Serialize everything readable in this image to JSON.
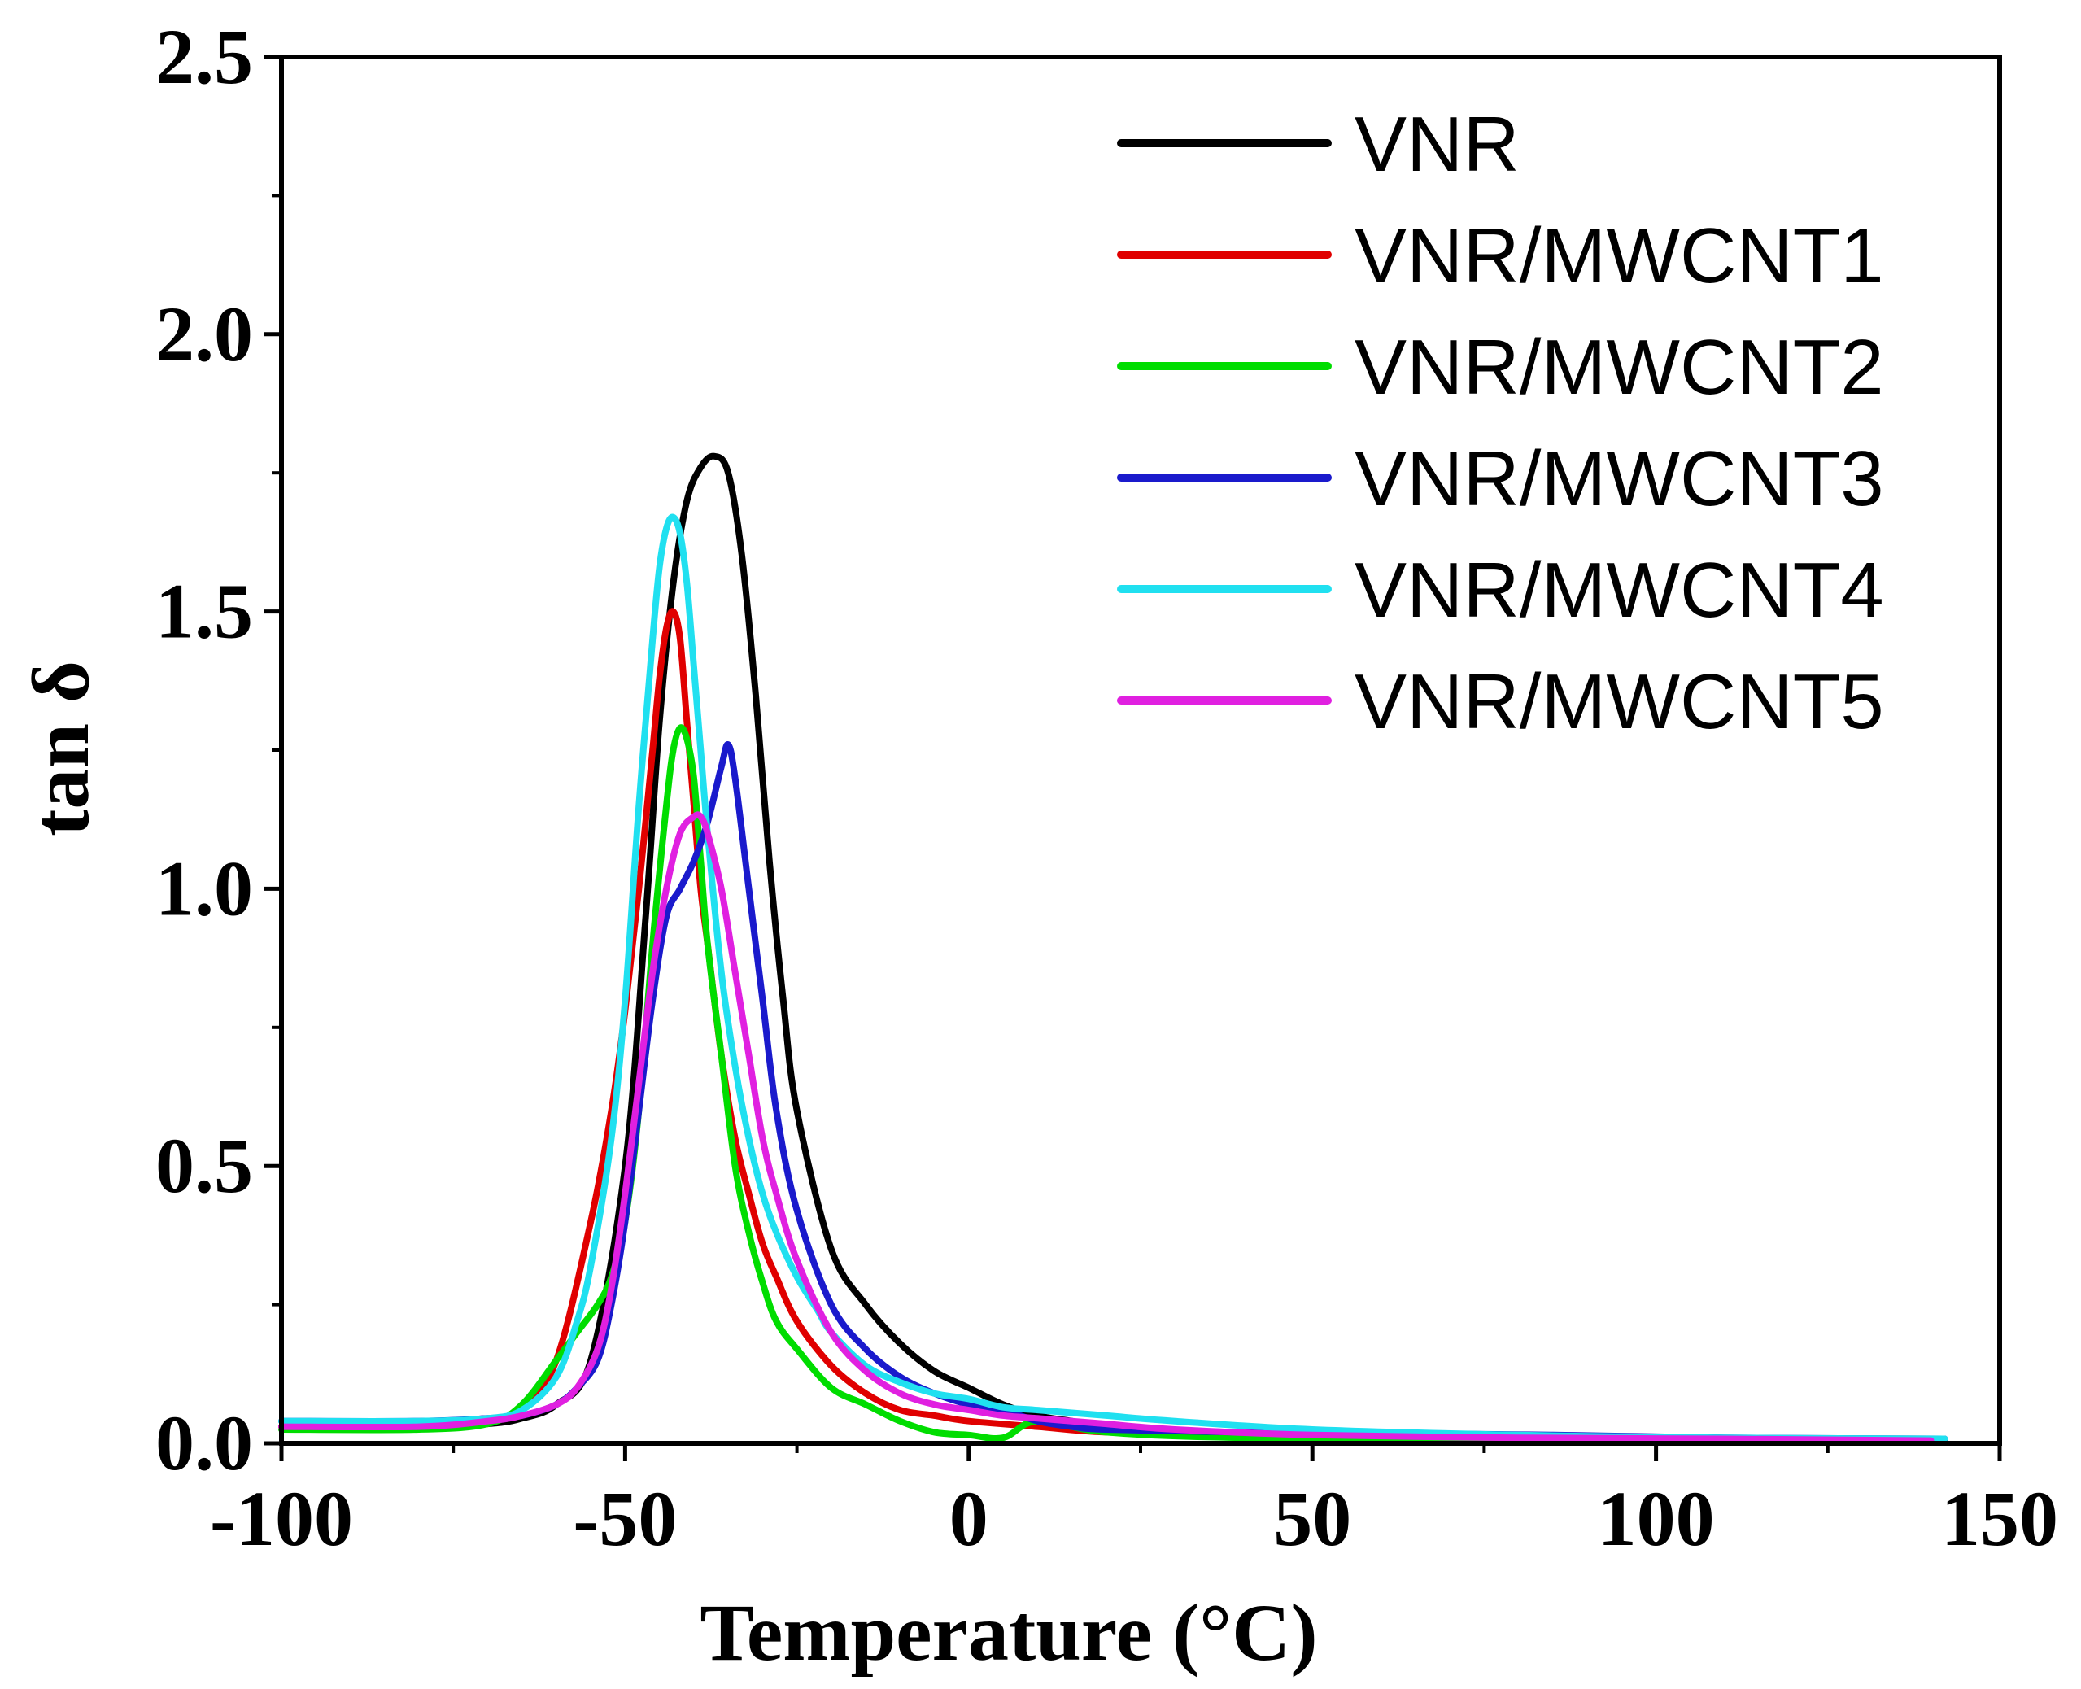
{
  "chart_data": {
    "type": "line",
    "title": "",
    "xlabel": "Temperature (°C)",
    "ylabel": "tan δ",
    "xlim": [
      -100,
      150
    ],
    "ylim": [
      0.0,
      2.5
    ],
    "x_ticks": [
      -100,
      -50,
      0,
      50,
      100,
      150
    ],
    "x_tick_labels": [
      "-100",
      "-50",
      "0",
      "50",
      "100",
      "150"
    ],
    "y_ticks": [
      0.0,
      0.5,
      1.0,
      1.5,
      2.0,
      2.5
    ],
    "y_tick_labels": [
      "0.0",
      "0.5",
      "1.0",
      "1.5",
      "2.0",
      "2.5"
    ],
    "grid": false,
    "legend_position": "top-right",
    "series": [
      {
        "name": "VNR",
        "color": "#000000",
        "x": [
          -100,
          -80,
          -70,
          -65,
          -60,
          -55,
          -50,
          -47,
          -45,
          -43,
          -41,
          -39,
          -37,
          -35,
          -33,
          -31,
          -29,
          -27,
          -25,
          -20,
          -15,
          -10,
          -5,
          0,
          5,
          10,
          15,
          20,
          30,
          50,
          80,
          110,
          142
        ],
        "y": [
          0.03,
          0.03,
          0.035,
          0.045,
          0.07,
          0.15,
          0.5,
          0.95,
          1.3,
          1.55,
          1.7,
          1.76,
          1.78,
          1.75,
          1.6,
          1.35,
          1.05,
          0.8,
          0.6,
          0.35,
          0.25,
          0.18,
          0.13,
          0.1,
          0.07,
          0.05,
          0.04,
          0.03,
          0.02,
          0.015,
          0.01,
          0.008,
          0.005
        ]
      },
      {
        "name": "VNR/MWCNT1",
        "color": "#e00000",
        "x": [
          -100,
          -80,
          -70,
          -65,
          -60,
          -55,
          -52,
          -50,
          -48,
          -46,
          -45,
          -44,
          -43,
          -42,
          -41,
          -40,
          -39,
          -38,
          -36,
          -34,
          -32,
          -30,
          -28,
          -25,
          -20,
          -15,
          -10,
          -5,
          0,
          10,
          20,
          40,
          80,
          140
        ],
        "y": [
          0.03,
          0.03,
          0.04,
          0.06,
          0.15,
          0.4,
          0.6,
          0.78,
          1.0,
          1.25,
          1.38,
          1.47,
          1.5,
          1.45,
          1.3,
          1.15,
          1.0,
          0.9,
          0.7,
          0.55,
          0.45,
          0.36,
          0.3,
          0.22,
          0.14,
          0.09,
          0.06,
          0.05,
          0.04,
          0.03,
          0.02,
          0.015,
          0.01,
          0.005
        ]
      },
      {
        "name": "VNR/MWCNT2",
        "color": "#00dd00",
        "x": [
          -100,
          -80,
          -70,
          -65,
          -60,
          -57,
          -54,
          -52,
          -50,
          -48,
          -46,
          -44,
          -43,
          -42,
          -41,
          -40,
          -39,
          -38,
          -36,
          -34,
          -32,
          -30,
          -28,
          -25,
          -20,
          -15,
          -10,
          -5,
          0,
          5,
          10,
          20,
          40,
          80,
          140
        ],
        "y": [
          0.025,
          0.025,
          0.035,
          0.07,
          0.15,
          0.2,
          0.25,
          0.3,
          0.4,
          0.6,
          0.9,
          1.15,
          1.25,
          1.29,
          1.27,
          1.2,
          1.05,
          0.9,
          0.7,
          0.5,
          0.38,
          0.29,
          0.22,
          0.17,
          0.1,
          0.07,
          0.04,
          0.02,
          0.015,
          0.01,
          0.04,
          0.02,
          0.01,
          0.008,
          0.005
        ]
      },
      {
        "name": "VNR/MWCNT3",
        "color": "#1a1acc",
        "x": [
          -100,
          -80,
          -70,
          -65,
          -60,
          -57,
          -54,
          -52,
          -50,
          -48,
          -46,
          -44,
          -42,
          -40,
          -38,
          -36,
          -35,
          -34,
          -32,
          -30,
          -28,
          -25,
          -20,
          -15,
          -10,
          -5,
          0,
          5,
          10,
          15,
          20,
          40,
          60,
          85,
          110,
          142
        ],
        "y": [
          0.04,
          0.04,
          0.045,
          0.05,
          0.07,
          0.1,
          0.15,
          0.25,
          0.4,
          0.6,
          0.8,
          0.95,
          1.0,
          1.05,
          1.12,
          1.22,
          1.26,
          1.2,
          1.0,
          0.8,
          0.6,
          0.42,
          0.25,
          0.17,
          0.12,
          0.09,
          0.07,
          0.06,
          0.04,
          0.03,
          0.025,
          0.02,
          0.018,
          0.015,
          0.01,
          0.008
        ]
      },
      {
        "name": "VNR/MWCNT4",
        "color": "#20e0f0",
        "x": [
          -100,
          -80,
          -70,
          -65,
          -60,
          -57,
          -55,
          -52,
          -50,
          -48,
          -46,
          -45,
          -44,
          -43,
          -42,
          -41,
          -40,
          -39,
          -38,
          -36,
          -34,
          -32,
          -30,
          -28,
          -25,
          -22,
          -20,
          -15,
          -10,
          -5,
          0,
          5,
          10,
          20,
          30,
          50,
          80,
          110,
          142
        ],
        "y": [
          0.04,
          0.04,
          0.045,
          0.06,
          0.12,
          0.22,
          0.32,
          0.55,
          0.8,
          1.15,
          1.45,
          1.58,
          1.65,
          1.67,
          1.64,
          1.55,
          1.4,
          1.25,
          1.1,
          0.85,
          0.68,
          0.55,
          0.45,
          0.38,
          0.3,
          0.24,
          0.2,
          0.14,
          0.11,
          0.09,
          0.08,
          0.065,
          0.06,
          0.05,
          0.04,
          0.025,
          0.015,
          0.01,
          0.008
        ]
      },
      {
        "name": "VNR/MWCNT5",
        "color": "#e020e0",
        "x": [
          -100,
          -80,
          -70,
          -65,
          -60,
          -57,
          -54,
          -52,
          -50,
          -48,
          -46,
          -44,
          -42,
          -40,
          -39,
          -38,
          -36,
          -34,
          -32,
          -30,
          -28,
          -25,
          -20,
          -15,
          -10,
          -5,
          0,
          5,
          10,
          15,
          20,
          30,
          50,
          80,
          110,
          140
        ],
        "y": [
          0.03,
          0.03,
          0.04,
          0.05,
          0.07,
          0.1,
          0.17,
          0.28,
          0.45,
          0.65,
          0.85,
          1.0,
          1.1,
          1.13,
          1.13,
          1.1,
          1.0,
          0.85,
          0.7,
          0.55,
          0.45,
          0.33,
          0.2,
          0.13,
          0.09,
          0.07,
          0.06,
          0.05,
          0.045,
          0.04,
          0.035,
          0.025,
          0.015,
          0.01,
          0.008,
          0.005
        ]
      }
    ]
  }
}
